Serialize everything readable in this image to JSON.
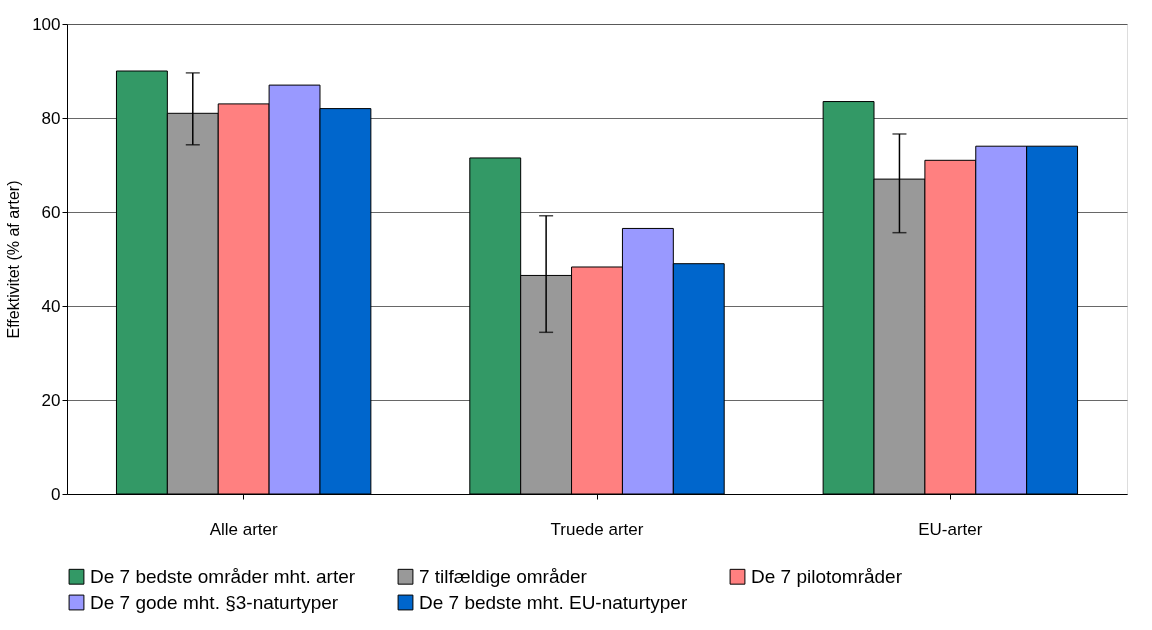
{
  "chart_data": {
    "type": "bar",
    "ylabel": "Effektivitet (% af arter)",
    "categories": [
      "Alle arter",
      "Truede arter",
      "EU-arter"
    ],
    "series": [
      {
        "name": "De 7 bedste områder mht. arter",
        "color": "#339966",
        "values": [
          90,
          71.5,
          83.5
        ]
      },
      {
        "name": "7 tilfældige områder",
        "color": "#999999",
        "values": [
          81,
          46.5,
          67
        ],
        "errors": [
          [
            74.3,
            89.6
          ],
          [
            34.4,
            59.2
          ],
          [
            55.6,
            76.6
          ]
        ]
      },
      {
        "name": "De 7 pilotområder",
        "color": "#ff8080",
        "values": [
          83,
          48.3,
          71
        ]
      },
      {
        "name": "De 7 gode mht. §3-naturtyper",
        "color": "#9999ff",
        "values": [
          87,
          56.5,
          74
        ]
      },
      {
        "name": "De 7 bedste mht. EU-naturtyper",
        "color": "#0066cc",
        "values": [
          82,
          49,
          74
        ]
      }
    ],
    "ylim": [
      0,
      100
    ],
    "yticks": [
      0,
      20,
      40,
      60,
      80,
      100
    ],
    "grid": "y",
    "legend": "bottom"
  }
}
